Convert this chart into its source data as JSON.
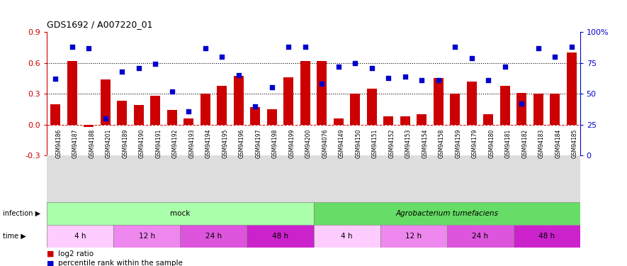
{
  "title": "GDS1692 / A007220_01",
  "samples": [
    "GSM94186",
    "GSM94187",
    "GSM94188",
    "GSM94201",
    "GSM94189",
    "GSM94190",
    "GSM94191",
    "GSM94192",
    "GSM94193",
    "GSM94194",
    "GSM94195",
    "GSM94196",
    "GSM94197",
    "GSM94198",
    "GSM94199",
    "GSM94200",
    "GSM94076",
    "GSM94149",
    "GSM94150",
    "GSM94151",
    "GSM94152",
    "GSM94153",
    "GSM94154",
    "GSM94158",
    "GSM94159",
    "GSM94179",
    "GSM94180",
    "GSM94181",
    "GSM94182",
    "GSM94183",
    "GSM94184",
    "GSM94185"
  ],
  "log2_ratio": [
    0.2,
    0.62,
    -0.02,
    0.44,
    0.23,
    0.19,
    0.28,
    0.14,
    0.06,
    0.3,
    0.38,
    0.47,
    0.17,
    0.15,
    0.46,
    0.62,
    0.62,
    0.06,
    0.3,
    0.35,
    0.08,
    0.08,
    0.1,
    0.45,
    0.3,
    0.42,
    0.1,
    0.38,
    0.31,
    0.3,
    0.3,
    0.7
  ],
  "percentile": [
    62,
    88,
    87,
    30,
    68,
    71,
    74,
    52,
    36,
    87,
    80,
    65,
    40,
    55,
    88,
    88,
    58,
    72,
    75,
    71,
    63,
    64,
    61,
    61,
    88,
    79,
    61,
    72,
    42,
    87,
    80,
    88
  ],
  "bar_color": "#cc0000",
  "scatter_color": "#0000cc",
  "ylim_left": [
    -0.3,
    0.9
  ],
  "ylim_right": [
    0,
    100
  ],
  "yticks_left": [
    -0.3,
    0.0,
    0.3,
    0.6,
    0.9
  ],
  "yticks_right": [
    0,
    25,
    50,
    75,
    100
  ],
  "hlines": [
    0.3,
    0.6
  ],
  "infection_groups": [
    {
      "label": "mock",
      "start": 0,
      "end": 16,
      "color": "#aaffaa"
    },
    {
      "label": "Agrobacterium tumefaciens",
      "start": 16,
      "end": 32,
      "color": "#66dd66"
    }
  ],
  "time_groups": [
    {
      "label": "4 h",
      "start": 0,
      "end": 4,
      "color": "#ffccff"
    },
    {
      "label": "12 h",
      "start": 4,
      "end": 8,
      "color": "#ee88ee"
    },
    {
      "label": "24 h",
      "start": 8,
      "end": 12,
      "color": "#dd55dd"
    },
    {
      "label": "48 h",
      "start": 12,
      "end": 16,
      "color": "#cc22cc"
    },
    {
      "label": "4 h",
      "start": 16,
      "end": 20,
      "color": "#ffccff"
    },
    {
      "label": "12 h",
      "start": 20,
      "end": 24,
      "color": "#ee88ee"
    },
    {
      "label": "24 h",
      "start": 24,
      "end": 28,
      "color": "#dd55dd"
    },
    {
      "label": "48 h",
      "start": 28,
      "end": 32,
      "color": "#cc22cc"
    }
  ],
  "infection_label": "infection",
  "time_label": "time",
  "legend_bar_label": "log2 ratio",
  "legend_scatter_label": "percentile rank within the sample",
  "ylabel_left_color": "#cc0000",
  "ylabel_right_color": "#0000cc",
  "bg_color": "#ffffff",
  "xtick_bg": "#dddddd"
}
